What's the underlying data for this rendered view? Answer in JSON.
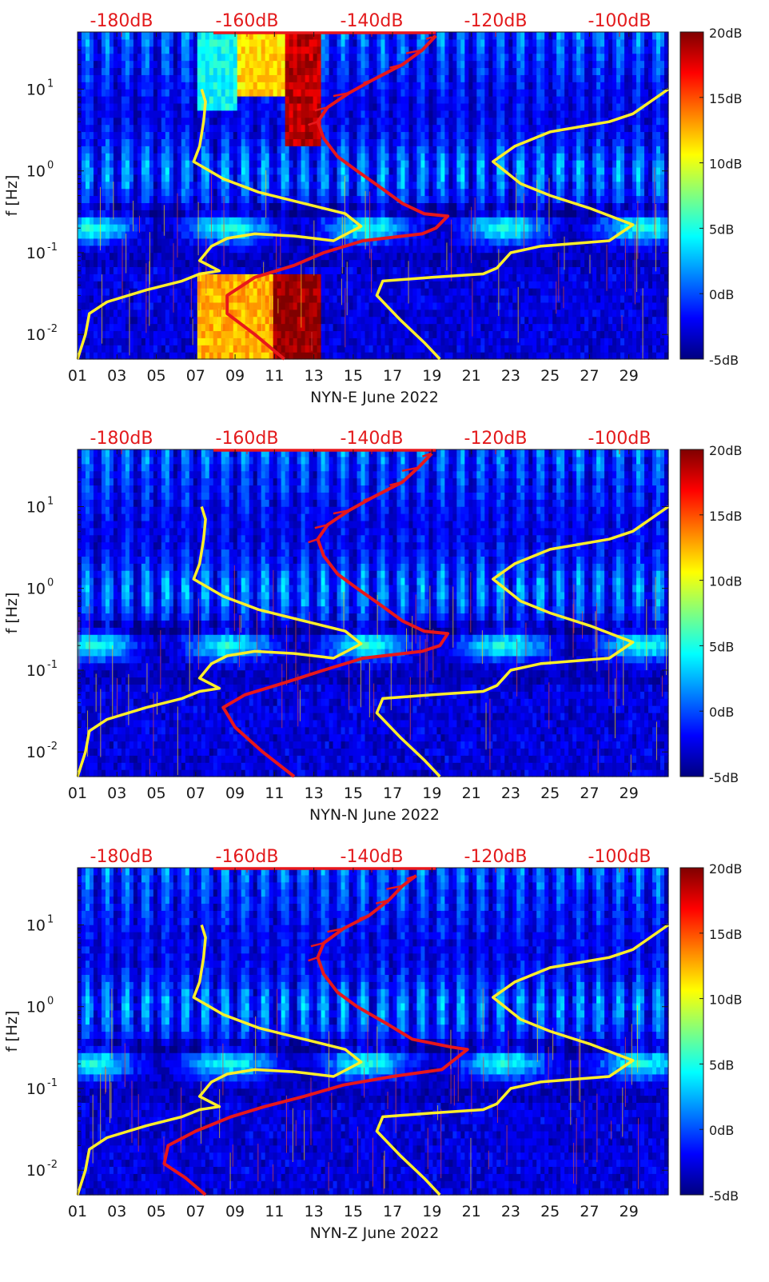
{
  "chart_data": [
    {
      "type": "heatmap",
      "title": "NYN-E June 2022",
      "xlabel": "NYN-E June 2022",
      "ylabel": "f [Hz]",
      "x_ticks": [
        "01",
        "03",
        "05",
        "07",
        "09",
        "11",
        "13",
        "15",
        "17",
        "19",
        "21",
        "23",
        "25",
        "27",
        "29"
      ],
      "y_ticks": [
        "10^-2",
        "10^-1",
        "10^0",
        "10^1"
      ],
      "ylim_hz": [
        0.005,
        50
      ],
      "xlim_day": [
        1,
        31
      ],
      "top_axis_labels": [
        "-180dB",
        "-160dB",
        "-140dB",
        "-120dB",
        "-100dB"
      ],
      "colorbar": {
        "labels": [
          "20dB",
          "15dB",
          "10dB",
          "5dB",
          "0dB",
          "-5dB"
        ],
        "range_db": [
          -5,
          20
        ]
      },
      "yellow_curves": [
        {
          "name": "low-noise-model",
          "points": [
            [
              1.0,
              0.005
            ],
            [
              1.4,
              0.01
            ],
            [
              1.6,
              0.018
            ],
            [
              2.5,
              0.025
            ],
            [
              4.5,
              0.035
            ],
            [
              6.3,
              0.045
            ],
            [
              7.2,
              0.055
            ],
            [
              8.2,
              0.06
            ],
            [
              7.2,
              0.08
            ],
            [
              7.8,
              0.12
            ],
            [
              8.6,
              0.15
            ],
            [
              10.0,
              0.17
            ],
            [
              12.0,
              0.16
            ],
            [
              14.0,
              0.14
            ],
            [
              15.4,
              0.21
            ],
            [
              14.6,
              0.3
            ],
            [
              12.5,
              0.4
            ],
            [
              10.2,
              0.55
            ],
            [
              8.4,
              0.8
            ],
            [
              6.9,
              1.3
            ],
            [
              7.2,
              2.0
            ],
            [
              7.4,
              4.0
            ],
            [
              7.5,
              7.0
            ],
            [
              7.3,
              10.0
            ]
          ]
        },
        {
          "name": "high-noise-model",
          "points": [
            [
              19.4,
              0.005
            ],
            [
              18.6,
              0.008
            ],
            [
              17.4,
              0.015
            ],
            [
              16.2,
              0.03
            ],
            [
              16.5,
              0.045
            ],
            [
              19.0,
              0.05
            ],
            [
              21.6,
              0.055
            ],
            [
              22.3,
              0.065
            ],
            [
              23.0,
              0.1
            ],
            [
              24.5,
              0.12
            ],
            [
              28.0,
              0.14
            ],
            [
              29.2,
              0.22
            ],
            [
              27.0,
              0.35
            ],
            [
              25.0,
              0.5
            ],
            [
              23.5,
              0.7
            ],
            [
              22.1,
              1.3
            ],
            [
              23.2,
              2.0
            ],
            [
              25.0,
              3.0
            ],
            [
              28.0,
              4.0
            ],
            [
              29.2,
              5.0
            ],
            [
              31.0,
              10.0
            ]
          ]
        }
      ],
      "red_curve": {
        "name": "median-psd",
        "points": [
          [
            11.5,
            0.005
          ],
          [
            10.0,
            0.01
          ],
          [
            8.6,
            0.018
          ],
          [
            8.6,
            0.03
          ],
          [
            10.0,
            0.05
          ],
          [
            12.0,
            0.07
          ],
          [
            13.5,
            0.1
          ],
          [
            15.5,
            0.14
          ],
          [
            18.5,
            0.17
          ],
          [
            19.2,
            0.2
          ],
          [
            19.8,
            0.28
          ],
          [
            18.6,
            0.3
          ],
          [
            17.5,
            0.4
          ],
          [
            16.5,
            0.6
          ],
          [
            15.2,
            1.0
          ],
          [
            14.2,
            1.5
          ],
          [
            13.5,
            2.5
          ],
          [
            13.2,
            4.0
          ],
          [
            13.7,
            6.0
          ],
          [
            14.8,
            9.0
          ],
          [
            16.0,
            13.0
          ],
          [
            17.5,
            20.0
          ],
          [
            18.5,
            30.0
          ],
          [
            19.2,
            45.0
          ]
        ]
      },
      "hot_regions": [
        {
          "x0": 7.0,
          "x1": 11.0,
          "f0": 0.005,
          "f1": 0.05,
          "db": 13
        },
        {
          "x0": 11.0,
          "x1": 13.3,
          "f0": 0.005,
          "f1": 0.06,
          "db": 20
        },
        {
          "x0": 11.5,
          "x1": 13.3,
          "f0": 2.0,
          "f1": 50,
          "db": 19
        },
        {
          "x0": 9.2,
          "x1": 11.5,
          "f0": 8.0,
          "f1": 50,
          "db": 12
        },
        {
          "x0": 7.0,
          "x1": 9.2,
          "f0": 5.0,
          "f1": 50,
          "db": 5
        }
      ]
    },
    {
      "type": "heatmap",
      "title": "NYN-N June 2022",
      "xlabel": "NYN-N June 2022",
      "ylabel": "f [Hz]",
      "x_ticks": [
        "01",
        "03",
        "05",
        "07",
        "09",
        "11",
        "13",
        "15",
        "17",
        "19",
        "21",
        "23",
        "25",
        "27",
        "29"
      ],
      "y_ticks": [
        "10^-2",
        "10^-1",
        "10^0",
        "10^1"
      ],
      "ylim_hz": [
        0.005,
        50
      ],
      "xlim_day": [
        1,
        31
      ],
      "top_axis_labels": [
        "-180dB",
        "-160dB",
        "-140dB",
        "-120dB",
        "-100dB"
      ],
      "colorbar": {
        "labels": [
          "20dB",
          "15dB",
          "10dB",
          "5dB",
          "0dB",
          "-5dB"
        ],
        "range_db": [
          -5,
          20
        ]
      },
      "yellow_curves": [
        {
          "name": "low-noise-model",
          "points": [
            [
              1.0,
              0.005
            ],
            [
              1.4,
              0.01
            ],
            [
              1.6,
              0.018
            ],
            [
              2.5,
              0.025
            ],
            [
              4.5,
              0.035
            ],
            [
              6.3,
              0.045
            ],
            [
              7.2,
              0.055
            ],
            [
              8.2,
              0.06
            ],
            [
              7.2,
              0.08
            ],
            [
              7.8,
              0.12
            ],
            [
              8.6,
              0.15
            ],
            [
              10.0,
              0.17
            ],
            [
              12.0,
              0.16
            ],
            [
              14.0,
              0.14
            ],
            [
              15.4,
              0.21
            ],
            [
              14.6,
              0.3
            ],
            [
              12.5,
              0.4
            ],
            [
              10.2,
              0.55
            ],
            [
              8.4,
              0.8
            ],
            [
              6.9,
              1.3
            ],
            [
              7.2,
              2.0
            ],
            [
              7.4,
              4.0
            ],
            [
              7.5,
              7.0
            ],
            [
              7.3,
              10.0
            ]
          ]
        },
        {
          "name": "high-noise-model",
          "points": [
            [
              19.4,
              0.005
            ],
            [
              18.6,
              0.008
            ],
            [
              17.4,
              0.015
            ],
            [
              16.2,
              0.03
            ],
            [
              16.5,
              0.045
            ],
            [
              19.0,
              0.05
            ],
            [
              21.6,
              0.055
            ],
            [
              22.3,
              0.065
            ],
            [
              23.0,
              0.1
            ],
            [
              24.5,
              0.12
            ],
            [
              28.0,
              0.14
            ],
            [
              29.2,
              0.22
            ],
            [
              27.0,
              0.35
            ],
            [
              25.0,
              0.5
            ],
            [
              23.5,
              0.7
            ],
            [
              22.1,
              1.3
            ],
            [
              23.2,
              2.0
            ],
            [
              25.0,
              3.0
            ],
            [
              28.0,
              4.0
            ],
            [
              29.2,
              5.0
            ],
            [
              31.0,
              10.0
            ]
          ]
        }
      ],
      "red_curve": {
        "name": "median-psd",
        "points": [
          [
            12.0,
            0.005
          ],
          [
            10.4,
            0.01
          ],
          [
            9.0,
            0.02
          ],
          [
            8.4,
            0.035
          ],
          [
            9.5,
            0.05
          ],
          [
            11.5,
            0.07
          ],
          [
            13.5,
            0.1
          ],
          [
            15.5,
            0.14
          ],
          [
            18.5,
            0.17
          ],
          [
            19.4,
            0.2
          ],
          [
            19.8,
            0.28
          ],
          [
            18.6,
            0.3
          ],
          [
            17.5,
            0.4
          ],
          [
            16.5,
            0.6
          ],
          [
            15.2,
            1.0
          ],
          [
            14.2,
            1.5
          ],
          [
            13.5,
            2.5
          ],
          [
            13.2,
            4.0
          ],
          [
            13.7,
            6.0
          ],
          [
            14.8,
            9.0
          ],
          [
            16.0,
            13.0
          ],
          [
            17.5,
            20.0
          ],
          [
            18.3,
            30.0
          ],
          [
            19.0,
            45.0
          ]
        ]
      },
      "hot_regions": []
    },
    {
      "type": "heatmap",
      "title": "NYN-Z June 2022",
      "xlabel": "NYN-Z June 2022",
      "ylabel": "f [Hz]",
      "x_ticks": [
        "01",
        "03",
        "05",
        "07",
        "09",
        "11",
        "13",
        "15",
        "17",
        "19",
        "21",
        "23",
        "25",
        "27",
        "29"
      ],
      "y_ticks": [
        "10^-2",
        "10^-1",
        "10^0",
        "10^1"
      ],
      "ylim_hz": [
        0.005,
        50
      ],
      "xlim_day": [
        1,
        31
      ],
      "top_axis_labels": [
        "-180dB",
        "-160dB",
        "-140dB",
        "-120dB",
        "-100dB"
      ],
      "colorbar": {
        "labels": [
          "20dB",
          "15dB",
          "10dB",
          "5dB",
          "0dB",
          "-5dB"
        ],
        "range_db": [
          -5,
          20
        ]
      },
      "yellow_curves": [
        {
          "name": "low-noise-model",
          "points": [
            [
              1.0,
              0.005
            ],
            [
              1.4,
              0.01
            ],
            [
              1.6,
              0.018
            ],
            [
              2.5,
              0.025
            ],
            [
              4.5,
              0.035
            ],
            [
              6.3,
              0.045
            ],
            [
              7.2,
              0.055
            ],
            [
              8.2,
              0.06
            ],
            [
              7.2,
              0.08
            ],
            [
              7.8,
              0.12
            ],
            [
              8.6,
              0.15
            ],
            [
              10.0,
              0.17
            ],
            [
              12.0,
              0.16
            ],
            [
              14.0,
              0.14
            ],
            [
              15.4,
              0.21
            ],
            [
              14.6,
              0.3
            ],
            [
              12.5,
              0.4
            ],
            [
              10.2,
              0.55
            ],
            [
              8.4,
              0.8
            ],
            [
              6.9,
              1.3
            ],
            [
              7.2,
              2.0
            ],
            [
              7.4,
              4.0
            ],
            [
              7.5,
              7.0
            ],
            [
              7.3,
              10.0
            ]
          ]
        },
        {
          "name": "high-noise-model",
          "points": [
            [
              19.4,
              0.005
            ],
            [
              18.6,
              0.008
            ],
            [
              17.4,
              0.015
            ],
            [
              16.2,
              0.03
            ],
            [
              16.5,
              0.045
            ],
            [
              19.0,
              0.05
            ],
            [
              21.6,
              0.055
            ],
            [
              22.3,
              0.065
            ],
            [
              23.0,
              0.1
            ],
            [
              24.5,
              0.12
            ],
            [
              28.0,
              0.14
            ],
            [
              29.2,
              0.22
            ],
            [
              27.0,
              0.35
            ],
            [
              25.0,
              0.5
            ],
            [
              23.5,
              0.7
            ],
            [
              22.1,
              1.3
            ],
            [
              23.2,
              2.0
            ],
            [
              25.0,
              3.0
            ],
            [
              28.0,
              4.0
            ],
            [
              29.2,
              5.0
            ],
            [
              31.0,
              10.0
            ]
          ]
        }
      ],
      "red_curve": {
        "name": "median-psd",
        "points": [
          [
            7.5,
            0.005
          ],
          [
            6.5,
            0.008
          ],
          [
            5.4,
            0.012
          ],
          [
            5.6,
            0.02
          ],
          [
            7.0,
            0.03
          ],
          [
            8.8,
            0.045
          ],
          [
            10.5,
            0.06
          ],
          [
            12.5,
            0.08
          ],
          [
            14.5,
            0.11
          ],
          [
            17.0,
            0.14
          ],
          [
            19.5,
            0.17
          ],
          [
            20.8,
            0.3
          ],
          [
            20.0,
            0.32
          ],
          [
            18.0,
            0.4
          ],
          [
            16.8,
            0.6
          ],
          [
            15.2,
            1.0
          ],
          [
            14.2,
            1.5
          ],
          [
            13.5,
            2.5
          ],
          [
            13.2,
            4.0
          ],
          [
            13.5,
            6.0
          ],
          [
            14.5,
            9.0
          ],
          [
            15.8,
            13.0
          ],
          [
            16.8,
            20.0
          ],
          [
            17.5,
            30.0
          ],
          [
            18.2,
            40.0
          ]
        ]
      },
      "hot_regions": []
    }
  ],
  "colors": {
    "red_annotation": "#e31a1c",
    "yellow_curve": "#ffee2a",
    "red_curve": "#e8171b",
    "axis": "#1a1a1a"
  }
}
